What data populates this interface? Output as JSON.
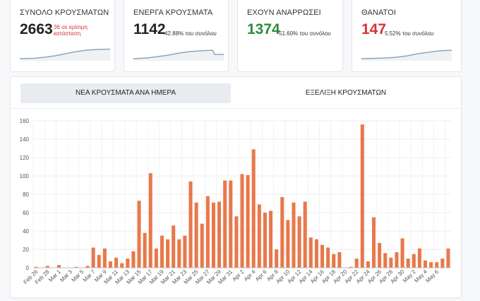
{
  "cards": [
    {
      "title": "ΣΥΝΟΛΟ ΚΡΟΥΣΜΑΤΩΝ",
      "value": "2663",
      "note": "36 σε κρίσιμη κατάσταση"
    },
    {
      "title": "ΕΝΕΡΓΑ ΚΡΟΥΣΜΑΤΑ",
      "value": "1142",
      "note": "42.88% του συνόλου"
    },
    {
      "title": "ΕΧΟΥΝ ΑΝΑΡΡΩΣΕΙ",
      "value": "1374",
      "note": "51.60% του συνόλου"
    },
    {
      "title": "ΘΑΝΑΤΟΙ",
      "value": "147",
      "note": "5.52% του συνόλου"
    }
  ],
  "tabs": {
    "daily": "ΝΕΑ ΚΡΟΥΣΜΑΤΑ ΑΝΑ ΗΜΕΡΑ",
    "evolution": "ΕΞΕΛΙΞΗ ΚΡΟΥΣΜΑΤΩΝ"
  },
  "colors": {
    "bar": "#e8784a",
    "green": "#2e8b3e",
    "red": "#d6323a",
    "spark": "#8fa6bd"
  },
  "chart_data": {
    "type": "bar",
    "title": "ΝΕΑ ΚΡΟΥΣΜΑΤΑ ΑΝΑ ΗΜΕΡΑ",
    "ylim": [
      0,
      160
    ],
    "yticks": [
      0,
      20,
      40,
      60,
      80,
      100,
      120,
      140,
      160
    ],
    "grid": true,
    "tick_labels": [
      "Feb 26",
      "Feb 28",
      "Mar 1",
      "Mar 3",
      "Mar 5",
      "Mar 7",
      "Mar 9",
      "Mar 11",
      "Mar 13",
      "Mar 15",
      "Mar 17",
      "Mar 19",
      "Mar 21",
      "Mar 23",
      "Mar 25",
      "Mar 27",
      "Mar 29",
      "Mar 31",
      "Apr 2",
      "Apr 4",
      "Apr 6",
      "Apr 8",
      "Apr 10",
      "Apr 12",
      "Apr 14",
      "Apr 16",
      "Apr 18",
      "Apr 20",
      "Apr 22",
      "Apr 24",
      "Apr 26",
      "Apr 28",
      "Apr 30",
      "May 2",
      "May 4",
      "May 6"
    ],
    "values": [
      1,
      0,
      2,
      0,
      3,
      0,
      0,
      1,
      0,
      2,
      22,
      14,
      21,
      7,
      11,
      5,
      10,
      18,
      73,
      38,
      103,
      21,
      35,
      31,
      46,
      31,
      35,
      94,
      71,
      48,
      78,
      71,
      72,
      95,
      95,
      56,
      102,
      101,
      129,
      69,
      60,
      62,
      20,
      77,
      52,
      71,
      56,
      72,
      33,
      31,
      25,
      22,
      15,
      17,
      0,
      1,
      10,
      156,
      7,
      55,
      27,
      16,
      11,
      17,
      32,
      10,
      15,
      21,
      8,
      6,
      6,
      10,
      21
    ]
  }
}
